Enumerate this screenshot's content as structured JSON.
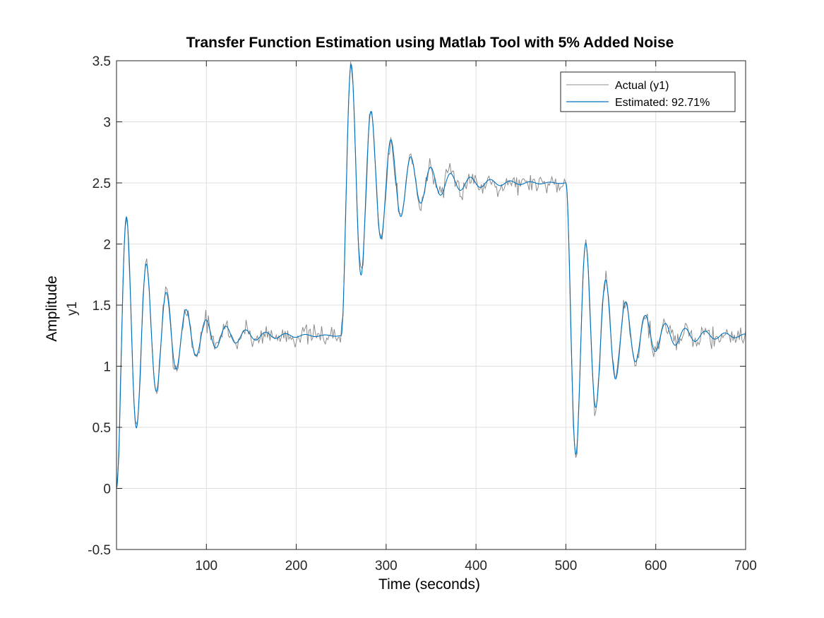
{
  "chart_data": {
    "type": "line",
    "title": "Transfer Function Estimation using Matlab Tool with 5% Added Noise",
    "xlabel": "Time (seconds)",
    "ylabel": "Amplitude",
    "ylabel_secondary": "y1",
    "xlim": [
      0,
      700
    ],
    "ylim": [
      -0.5,
      3.5
    ],
    "xticks": [
      100,
      200,
      300,
      400,
      500,
      600,
      700
    ],
    "xtick_labels": [
      "100",
      "200",
      "300",
      "400",
      "500",
      "600",
      "700"
    ],
    "yticks": [
      -0.5,
      0,
      0.5,
      1,
      1.5,
      2,
      2.5,
      3,
      3.5
    ],
    "ytick_labels": [
      "-0.5",
      "0",
      "0.5",
      "1",
      "1.5",
      "2",
      "2.5",
      "3",
      "3.5"
    ],
    "grid": true,
    "legend_position": "top-right",
    "step_events": [
      {
        "t": 0,
        "from": 0,
        "to": 1.25
      },
      {
        "t": 250,
        "from": 1.25,
        "to": 2.5
      },
      {
        "t": 500,
        "from": 2.5,
        "to": 1.25
      }
    ],
    "series": [
      {
        "name": "Actual (y1)",
        "color": "#8c8c8c",
        "key_points": [
          [
            0,
            0.0
          ],
          [
            11,
            2.2
          ],
          [
            23,
            0.46
          ],
          [
            34,
            1.78
          ],
          [
            45,
            0.84
          ],
          [
            56,
            1.57
          ],
          [
            67,
            1.02
          ],
          [
            78,
            1.44
          ],
          [
            90,
            1.05
          ],
          [
            101,
            1.44
          ],
          [
            250,
            1.25
          ],
          [
            261,
            3.44
          ],
          [
            273,
            1.77
          ],
          [
            284,
            3.06
          ],
          [
            296,
            2.09
          ],
          [
            307,
            2.87
          ],
          [
            318,
            2.22
          ],
          [
            329,
            2.68
          ],
          [
            400,
            2.52
          ],
          [
            480,
            2.66
          ],
          [
            500,
            2.5
          ],
          [
            511,
            0.26
          ],
          [
            522,
            2.01
          ],
          [
            534,
            0.71
          ],
          [
            545,
            1.66
          ],
          [
            556,
            0.91
          ],
          [
            600,
            1.2
          ],
          [
            700,
            1.25
          ]
        ]
      },
      {
        "name": "Estimated: 92.71%",
        "color": "#0072bd",
        "key_points": [
          [
            0,
            0.0
          ],
          [
            11,
            2.2
          ],
          [
            23,
            0.54
          ],
          [
            34,
            1.78
          ],
          [
            45,
            0.85
          ],
          [
            56,
            1.55
          ],
          [
            67,
            1.02
          ],
          [
            78,
            1.43
          ],
          [
            90,
            1.11
          ],
          [
            101,
            1.36
          ],
          [
            250,
            1.25
          ],
          [
            261,
            3.44
          ],
          [
            273,
            1.79
          ],
          [
            284,
            3.05
          ],
          [
            296,
            2.1
          ],
          [
            307,
            2.8
          ],
          [
            318,
            2.3
          ],
          [
            329,
            2.66
          ],
          [
            400,
            2.5
          ],
          [
            500,
            2.5
          ],
          [
            511,
            0.27
          ],
          [
            522,
            1.97
          ],
          [
            534,
            0.72
          ],
          [
            545,
            1.64
          ],
          [
            556,
            0.95
          ],
          [
            600,
            1.25
          ],
          [
            700,
            1.25
          ]
        ]
      }
    ]
  },
  "legend": {
    "items": [
      {
        "label": "Actual (y1)",
        "color": "#8c8c8c"
      },
      {
        "label": "Estimated: 92.71%",
        "color": "#0072bd"
      }
    ]
  }
}
